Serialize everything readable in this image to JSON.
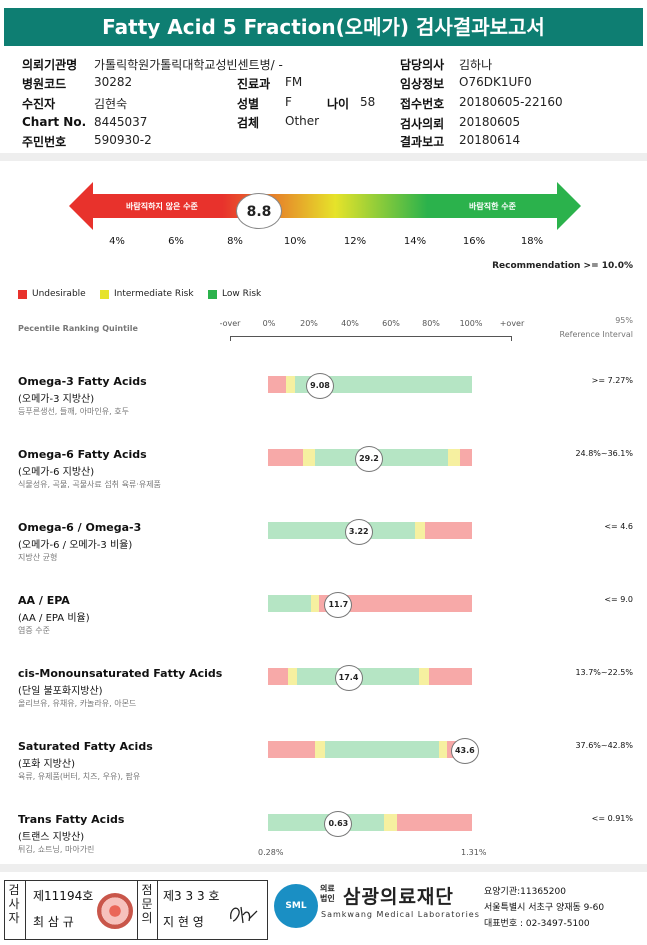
{
  "title": "Fatty Acid 5 Fraction(오메가) 검사결과보고서",
  "info": {
    "institution_label": "의뢰기관명",
    "institution": "가톨릭학원가톨릭대학교성빈센트병/ -",
    "hospital_code_label": "병원코드",
    "hospital_code": "30282",
    "collector_label": "수진자",
    "collector": "김현숙",
    "chart_label": "Chart No.",
    "chart_no": "8445037",
    "resident_label": "주민번호",
    "resident_no": "590930-2",
    "dept_label": "진료과",
    "dept": "FM",
    "sex_label": "성별",
    "sex": "F",
    "age_label": "나이",
    "age": "58",
    "specimen_label": "검체",
    "specimen": "Other",
    "doctor_label": "담당의사",
    "doctor": "김하나",
    "clinical_label": "임상정보",
    "clinical": "O76DK1UF0",
    "receipt_label": "접수번호",
    "receipt": "20180605-22160",
    "request_label": "검사의뢰",
    "request": "20180605",
    "report_label": "결과보고",
    "report": "20180614"
  },
  "gauge": {
    "left_text": "바람직하지 않은 수준",
    "right_text": "바람직한 수준",
    "score": "8.8",
    "score_value": 8.8,
    "ticks": [
      "4%",
      "6%",
      "8%",
      "10%",
      "12%",
      "14%",
      "16%",
      "18%"
    ],
    "colors": {
      "red": "#e8322c",
      "yellow": "#e6e32a",
      "green": "#2bb24c"
    }
  },
  "recommendation": "Recommendation  >= 10.0%",
  "legend": [
    {
      "label": "Undesirable",
      "color": "#e8322c"
    },
    {
      "label": "Intermediate Risk",
      "color": "#e6e32a"
    },
    {
      "label": "Low Risk",
      "color": "#2bb24c"
    }
  ],
  "table_header": {
    "percentile": "Pecentile Ranking Quintile",
    "scale": [
      "-over",
      "0%",
      "20%",
      "40%",
      "60%",
      "80%",
      "100%",
      "+over"
    ],
    "ref_line1": "95%",
    "ref_line2": "Reference Interval"
  },
  "rows": [
    {
      "title": "Omega-3 Fatty Acids",
      "sub": "(오메가-3 지방산)",
      "desc": "등푸른생선, 들깨, 아마인유, 호두",
      "value": "9.08",
      "position_pct": 25,
      "ref": ">= 7.27%"
    },
    {
      "title": "Omega-6 Fatty Acids",
      "sub": "(오메가-6 지방산)",
      "desc": "식물성유, 곡물, 곡물사료 섭취 육류·유제품",
      "value": "29.2",
      "position_pct": 49,
      "ref": "24.8%~36.1%"
    },
    {
      "title": "Omega-6 / Omega-3",
      "sub": "(오메가-6 / 오메가-3 비율)",
      "desc": "지방산 균형",
      "value": "3.22",
      "position_pct": 44,
      "ref": "<= 4.6"
    },
    {
      "title": "AA / EPA",
      "sub": "(AA / EPA 비율)",
      "desc": "염증 수준",
      "value": "11.7",
      "position_pct": 34,
      "ref": "<= 9.0"
    },
    {
      "title": "cis-Monounsaturated Fatty Acids",
      "sub": "(단일 불포화지방산)",
      "desc": "올리브유, 유채유, 카놀라유, 아몬드",
      "value": "17.4",
      "position_pct": 39,
      "ref": "13.7%~22.5%"
    },
    {
      "title": "Saturated Fatty Acids",
      "sub": "(포화 지방산)",
      "desc": "육류, 유제품(버터, 치즈, 우유), 팜유",
      "value": "43.6",
      "position_pct": 96,
      "ref": "37.6%~42.8%"
    },
    {
      "title": "Trans Fatty Acids",
      "sub": "(트랜스 지방산)",
      "desc": "튀김, 쇼트닝, 마아가린",
      "value": "0.63",
      "position_pct": 34,
      "ref": "<= 0.91%"
    }
  ],
  "trans_scale": {
    "left": "0.28%",
    "right": "1.31%"
  },
  "footer": {
    "examiner_vert": [
      "검",
      "사",
      "자"
    ],
    "examiner_no": "제11194호",
    "examiner_name": "최 삼 규",
    "approver_vert": [
      "점",
      "문",
      "의"
    ],
    "approver_no": "제3 3 3 호",
    "approver_name": "지 현 영",
    "logo": "SML",
    "brand_small_1": "의료",
    "brand_small_2": "법인",
    "brand": "삼광의료재단",
    "brand_en": "Samkwang Medical Laboratories",
    "addr1": "요양기관:11365200",
    "addr2": "서울특별시 서초구 양재동 9-60",
    "addr3": "대표번호 : 02-3497-5100"
  }
}
